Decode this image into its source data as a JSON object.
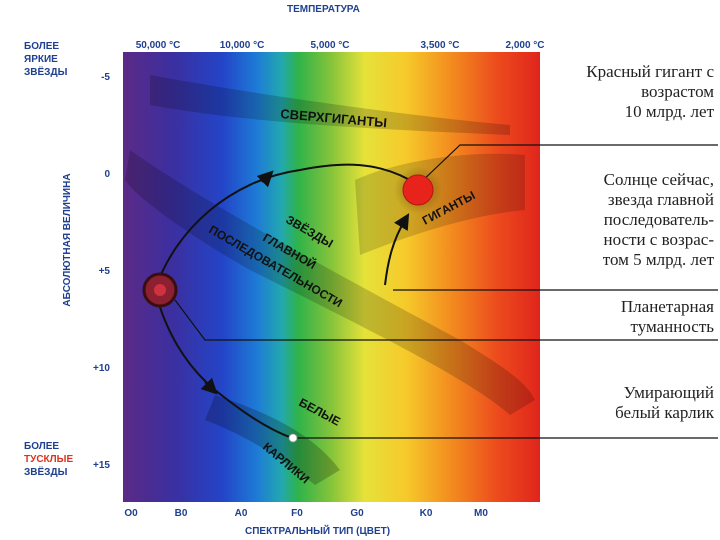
{
  "title": "ТЕМПЕРАТУРА",
  "temperatures": [
    "50,000 °C",
    "10,000 °C",
    "5,000 °C",
    "3,500 °C",
    "2,000 °C"
  ],
  "spectral_types": [
    "O0",
    "B0",
    "A0",
    "F0",
    "G0",
    "K0",
    "M0"
  ],
  "x_axis_title": "СПЕКТРАЛЬНЫЙ ТИП (ЦВЕТ)",
  "y_axis_title": "АБСОЛЮТНАЯ ВЕЛИЧИНА",
  "magnitudes": [
    "-5",
    "0",
    "+5",
    "+10",
    "+15"
  ],
  "brighter": {
    "line1": "БОЛЕЕ",
    "line2": "ЯРКИЕ",
    "line3": "ЗВЁЗДЫ"
  },
  "dimmer": {
    "line1": "БОЛЕЕ",
    "line2": "ТУСКЛЫЕ",
    "line3": "ЗВЁЗДЫ"
  },
  "regions": {
    "supergiants": "СВЕРХГИГАНТЫ",
    "giants": "ГИГАНТЫ",
    "main_sequence_1": "ЗВЁЗДЫ",
    "main_sequence_2": "ГЛАВНОЙ",
    "main_sequence_3": "ПОСЛЕДОВАТЕЛЬНОСТИ",
    "white_dwarfs_1": "БЕЛЫЕ",
    "white_dwarfs_2": "КАРЛИКИ"
  },
  "annotations": {
    "red_giant": [
      "Красный гигант с",
      "возрастом",
      "10 млрд. лет"
    ],
    "sun_now": [
      "Солнце сейчас,",
      "звезда главной",
      "последователь-",
      "ности с возрас-",
      "том 5 млрд. лет"
    ],
    "nebula": [
      "Планетарная",
      "туманность"
    ],
    "white_dwarf": [
      "Умирающий",
      "белый карлик"
    ]
  },
  "colors": {
    "label_blue": "#1f3f8f",
    "dim_red": "#e0301e",
    "red_giant_star": "#e8231c"
  }
}
